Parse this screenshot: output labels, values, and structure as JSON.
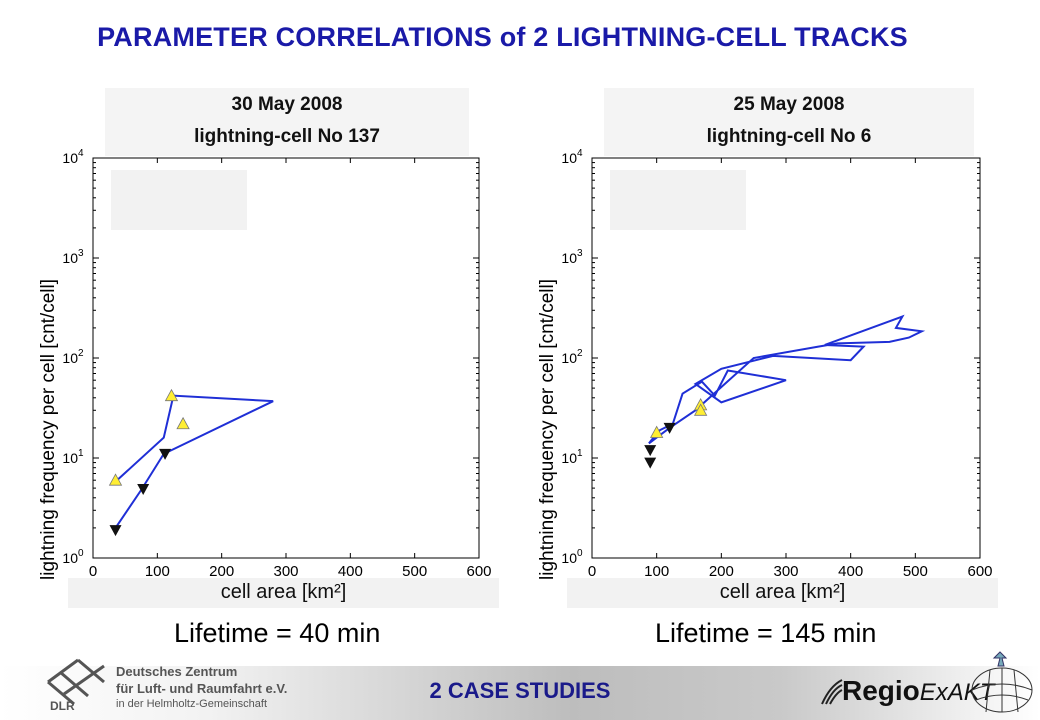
{
  "page": {
    "title": "PARAMETER CORRELATIONS of 2 LIGHTNING-CELL TRACKS",
    "footer_title": "2 CASE STUDIES"
  },
  "left_panel": {
    "date": "30 May 2008",
    "cell": "lightning-cell No 137",
    "ylabel": "lightning frequency per cell [cnt/cell]",
    "xlabel": "cell area [km²]",
    "lifetime": "Lifetime = 40 min"
  },
  "right_panel": {
    "date": "25 May 2008",
    "cell": "lightning-cell No 6",
    "ylabel": "lightning frequency per cell [cnt/cell]",
    "xlabel": "cell area [km²]",
    "lifetime": "Lifetime = 145 min"
  },
  "logo": {
    "line1": "Deutsches Zentrum",
    "line2": "für Luft- und Raumfahrt e.V.",
    "line3": "in der Helmholtz-Gemeinschaft",
    "abbr": "DLR",
    "project_bold": "Regio",
    "project_rest": "ExAKT"
  },
  "colors": {
    "title": "#1a1aa8",
    "track_line": "#1f2fd6",
    "start_marker": "#ffee33",
    "end_marker": "#111111"
  },
  "chart_data": [
    {
      "type": "line",
      "scale_y": "log",
      "xlim": [
        0,
        600
      ],
      "ylim": [
        1,
        10000
      ],
      "xticks": [
        0,
        100,
        200,
        300,
        400,
        500,
        600
      ],
      "yticks": [
        "10^0",
        "10^1",
        "10^2",
        "10^3",
        "10^4"
      ],
      "xlabel": "cell area [km²]",
      "ylabel": "lightning frequency per cell [cnt/cell]",
      "track": {
        "x": [
          35,
          35,
          75,
          110,
          280,
          125,
          110,
          35
        ],
        "y": [
          1.9,
          2.0,
          4.8,
          11,
          37,
          42,
          16,
          5.8
        ]
      },
      "start_markers": {
        "x": [
          122,
          140,
          35
        ],
        "y": [
          42,
          22,
          6
        ]
      },
      "end_markers": {
        "x": [
          35,
          78,
          112
        ],
        "y": [
          1.9,
          4.9,
          11
        ]
      }
    },
    {
      "type": "line",
      "scale_y": "log",
      "xlim": [
        0,
        600
      ],
      "ylim": [
        1,
        10000
      ],
      "xticks": [
        0,
        100,
        200,
        300,
        400,
        500,
        600
      ],
      "yticks": [
        "10^0",
        "10^1",
        "10^2",
        "10^3",
        "10^4"
      ],
      "xlabel": "cell area [km²]",
      "ylabel": "lightning frequency per cell [cnt/cell]",
      "track": {
        "x": [
          88,
          95,
          105,
          125,
          140,
          170,
          190,
          210,
          300,
          200,
          160,
          200,
          280,
          400,
          420,
          360,
          480,
          470,
          510,
          490,
          460,
          380,
          350,
          250,
          160,
          120,
          100,
          88
        ],
        "y": [
          14,
          16,
          19,
          22,
          44,
          58,
          42,
          75,
          60,
          36,
          55,
          78,
          105,
          95,
          130,
          135,
          260,
          200,
          185,
          160,
          145,
          140,
          130,
          100,
          30,
          20,
          16,
          14
        ]
      },
      "start_markers": {
        "x": [
          100,
          168,
          168
        ],
        "y": [
          18,
          34,
          30
        ]
      },
      "end_markers": {
        "x": [
          90,
          90,
          120
        ],
        "y": [
          12,
          9,
          20
        ]
      }
    }
  ]
}
